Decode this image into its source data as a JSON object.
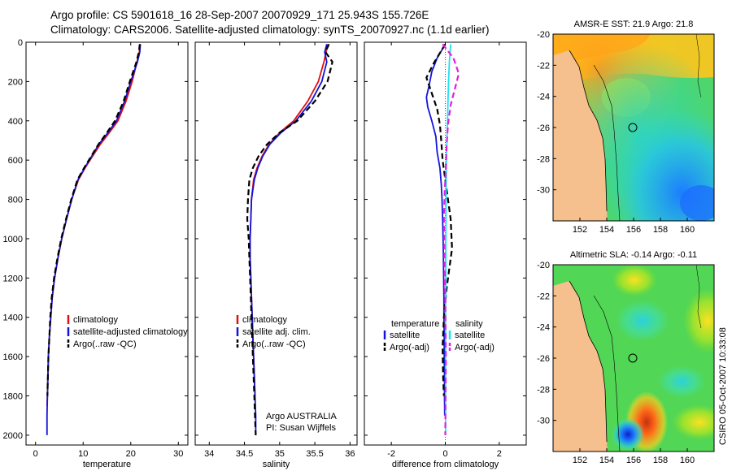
{
  "title_line1": "Argo profile: CS 5901618_16 28-Sep-2007 20070929_171 25.943S 155.726E",
  "title_line2": "Climatology: CARS2006. Satellite-adjusted climatology: synTS_20070927.nc (1.1d earlier)",
  "credit": "CSIRO 05-Oct-2007 10:33:08",
  "colors": {
    "climatology": "#e01010",
    "satellite": "#1414dc",
    "argo": "#000000",
    "sat_salinity": "#22e0f0",
    "argo_salinity_adj": "#e020e0",
    "land": "#f5c08e"
  },
  "chart_data": [
    {
      "type": "line",
      "id": "temperature",
      "xlabel": "temperature",
      "ylabel": "",
      "xlim": [
        -2,
        32
      ],
      "ylim": [
        2050,
        0
      ],
      "y_reversed": true,
      "xticks": [
        0,
        10,
        20,
        30
      ],
      "yticks": [
        0,
        200,
        400,
        600,
        800,
        1000,
        1200,
        1400,
        1600,
        1800,
        2000
      ],
      "legend": [
        "climatology",
        "satellite-adjusted climatology",
        "Argo(..raw -QC)"
      ],
      "legend_position": "lower-right",
      "series": [
        {
          "name": "climatology",
          "color": "#e01010",
          "dash": "solid",
          "x": [
            22.0,
            21.8,
            21.3,
            20.3,
            19.0,
            17.3,
            15.5,
            13.6,
            12.0,
            10.4,
            9.0,
            7.6,
            6.5,
            5.5,
            4.7,
            4.0,
            3.5,
            3.2,
            2.9,
            2.7,
            2.6,
            2.5,
            2.4
          ],
          "y": [
            10,
            50,
            100,
            200,
            300,
            400,
            460,
            520,
            580,
            640,
            700,
            800,
            900,
            1000,
            1100,
            1200,
            1300,
            1400,
            1500,
            1600,
            1700,
            1800,
            1850
          ]
        },
        {
          "name": "satellite-adjusted climatology",
          "color": "#1414dc",
          "dash": "solid",
          "x": [
            22.0,
            21.9,
            21.4,
            20.0,
            18.7,
            17.0,
            15.2,
            13.3,
            11.8,
            10.3,
            8.9,
            7.6,
            6.5,
            5.5,
            4.7,
            4.0,
            3.5,
            3.2,
            2.9,
            2.7,
            2.6,
            2.5,
            2.4,
            2.4
          ],
          "y": [
            10,
            50,
            100,
            200,
            300,
            400,
            460,
            520,
            580,
            640,
            700,
            800,
            900,
            1000,
            1100,
            1200,
            1300,
            1400,
            1500,
            1600,
            1700,
            1800,
            1900,
            2000
          ]
        },
        {
          "name": "Argo(..raw -QC)",
          "color": "#000000",
          "dash": "dashed",
          "x": [
            21.9,
            21.7,
            21.2,
            19.8,
            18.5,
            16.7,
            15.0,
            13.2,
            11.7,
            10.2,
            8.8,
            7.5,
            6.4,
            5.4,
            4.6,
            3.9,
            3.4,
            3.1,
            2.9,
            2.7,
            2.6,
            2.5
          ],
          "y": [
            10,
            50,
            100,
            200,
            300,
            400,
            460,
            520,
            580,
            640,
            700,
            800,
            900,
            1000,
            1100,
            1200,
            1300,
            1400,
            1500,
            1600,
            1700,
            1800
          ]
        }
      ]
    },
    {
      "type": "line",
      "id": "salinity",
      "xlabel": "salinity",
      "ylabel": "",
      "xlim": [
        33.8,
        36.1
      ],
      "ylim": [
        2050,
        0
      ],
      "y_reversed": true,
      "xticks": [
        34,
        34.5,
        35,
        35.5,
        36
      ],
      "legend": [
        "climatology",
        "satellite adj. clim.",
        "Argo(..raw -QC)"
      ],
      "legend_position": "lower-right",
      "annotation": [
        "Argo AUSTRALIA",
        "PI: Susan Wijffels"
      ],
      "series": [
        {
          "name": "climatology",
          "color": "#e01010",
          "dash": "solid",
          "x": [
            35.68,
            35.66,
            35.63,
            35.55,
            35.4,
            35.2,
            35.0,
            34.85,
            34.75,
            34.68,
            34.63,
            34.6,
            34.59,
            34.58,
            34.58,
            34.59,
            34.6,
            34.61,
            34.62,
            34.63,
            34.64,
            34.65
          ],
          "y": [
            10,
            50,
            100,
            200,
            300,
            400,
            460,
            520,
            580,
            640,
            700,
            800,
            900,
            1000,
            1100,
            1200,
            1300,
            1400,
            1500,
            1600,
            1700,
            1800
          ]
        },
        {
          "name": "satellite adj. clim.",
          "color": "#1414dc",
          "dash": "solid",
          "x": [
            35.67,
            35.64,
            35.67,
            35.6,
            35.45,
            35.23,
            35.02,
            34.86,
            34.76,
            34.69,
            34.64,
            34.6,
            34.59,
            34.58,
            34.58,
            34.59,
            34.6,
            34.61,
            34.62,
            34.63,
            34.64,
            34.65,
            34.66,
            34.66
          ],
          "y": [
            10,
            50,
            100,
            200,
            300,
            400,
            460,
            520,
            580,
            640,
            700,
            800,
            900,
            1000,
            1100,
            1200,
            1300,
            1400,
            1500,
            1600,
            1700,
            1800,
            1900,
            2000
          ]
        },
        {
          "name": "Argo(..raw -QC)",
          "color": "#000000",
          "dash": "dashed",
          "x": [
            35.7,
            35.65,
            35.75,
            35.68,
            35.5,
            35.25,
            35.0,
            34.82,
            34.7,
            34.62,
            34.57,
            34.55,
            34.54,
            34.56,
            34.57,
            34.58,
            34.59,
            34.6,
            34.61,
            34.62,
            34.63,
            34.64,
            34.65,
            34.66
          ],
          "y": [
            10,
            50,
            100,
            200,
            300,
            400,
            460,
            520,
            580,
            640,
            700,
            800,
            900,
            1000,
            1100,
            1200,
            1300,
            1400,
            1500,
            1600,
            1700,
            1800,
            1900,
            2000
          ]
        }
      ]
    },
    {
      "type": "line",
      "id": "difference",
      "xlabel": "difference from climatology",
      "ylabel": "",
      "xlim": [
        -3,
        3
      ],
      "ylim": [
        2050,
        0
      ],
      "y_reversed": true,
      "xticks": [
        -2,
        0,
        2
      ],
      "legend_groups": [
        {
          "heading": "temperature",
          "entries": [
            "satellite",
            "Argo(-adj)"
          ]
        },
        {
          "heading": "salinity",
          "entries": [
            "satellite",
            "Argo(-adj)"
          ]
        }
      ],
      "legend_position": "lower-center",
      "series": [
        {
          "name": "temperature satellite",
          "color": "#1414dc",
          "dash": "solid",
          "x": [
            0.0,
            -0.3,
            -0.5,
            -0.6,
            -0.7,
            -0.65,
            -0.5,
            -0.35,
            -0.3,
            -0.2,
            -0.15,
            -0.12,
            -0.1,
            -0.08,
            -0.07,
            -0.06,
            -0.05,
            -0.05,
            -0.04,
            -0.04,
            -0.03,
            -0.03,
            -0.02
          ],
          "y": [
            10,
            80,
            150,
            220,
            280,
            330,
            400,
            480,
            560,
            640,
            720,
            800,
            900,
            1000,
            1100,
            1200,
            1300,
            1400,
            1500,
            1600,
            1700,
            1800,
            1900
          ]
        },
        {
          "name": "temperature Argo(-adj)",
          "color": "#000000",
          "dash": "dashed",
          "x": [
            0.0,
            -0.4,
            -0.7,
            -0.5,
            -0.3,
            -0.2,
            -0.15,
            -0.1,
            0.0,
            0.1,
            0.2,
            0.25,
            0.15,
            0.05,
            -0.05,
            -0.1,
            -0.08,
            -0.05
          ],
          "y": [
            10,
            100,
            180,
            260,
            340,
            420,
            500,
            600,
            700,
            800,
            900,
            1050,
            1150,
            1250,
            1400,
            1550,
            1700,
            1800
          ]
        },
        {
          "name": "salinity satellite",
          "color": "#22e0f0",
          "dash": "solid",
          "x": [
            0.2,
            0.15,
            0.12,
            0.1,
            0.08,
            0.06,
            0.04,
            0.03,
            0.02,
            0.02,
            0.01,
            0.01,
            0.01,
            0.01
          ],
          "y": [
            10,
            100,
            200,
            300,
            400,
            500,
            600,
            800,
            1000,
            1200,
            1400,
            1600,
            1800,
            2000
          ]
        },
        {
          "name": "salinity Argo(-adj)",
          "color": "#e020e0",
          "dash": "dashed",
          "x": [
            -0.1,
            0.3,
            0.5,
            0.35,
            0.2,
            0.1,
            0.05,
            0.02,
            -0.02,
            -0.05,
            -0.03,
            0.0,
            0.02,
            0.0
          ],
          "y": [
            10,
            80,
            160,
            240,
            320,
            420,
            520,
            640,
            760,
            900,
            1100,
            1300,
            1600,
            2000
          ]
        }
      ]
    },
    {
      "type": "heatmap",
      "id": "sst-map",
      "title": "AMSR-E SST: 21.9 Argo: 21.8",
      "xlim": [
        150,
        162
      ],
      "ylim": [
        -32,
        -20
      ],
      "xticks": [
        152,
        154,
        156,
        158,
        160
      ],
      "yticks": [
        -20,
        -22,
        -24,
        -26,
        -28,
        -30
      ],
      "marker": {
        "lon": 155.7,
        "lat": -25.9
      }
    },
    {
      "type": "heatmap",
      "id": "sla-map",
      "title": "Altimetric SLA: -0.14 Argo: -0.11",
      "xlim": [
        150,
        162
      ],
      "ylim": [
        -32,
        -20
      ],
      "xticks": [
        152,
        154,
        156,
        158,
        160
      ],
      "yticks": [
        -20,
        -22,
        -24,
        -26,
        -28,
        -30
      ],
      "marker": {
        "lon": 155.7,
        "lat": -25.9
      }
    }
  ]
}
